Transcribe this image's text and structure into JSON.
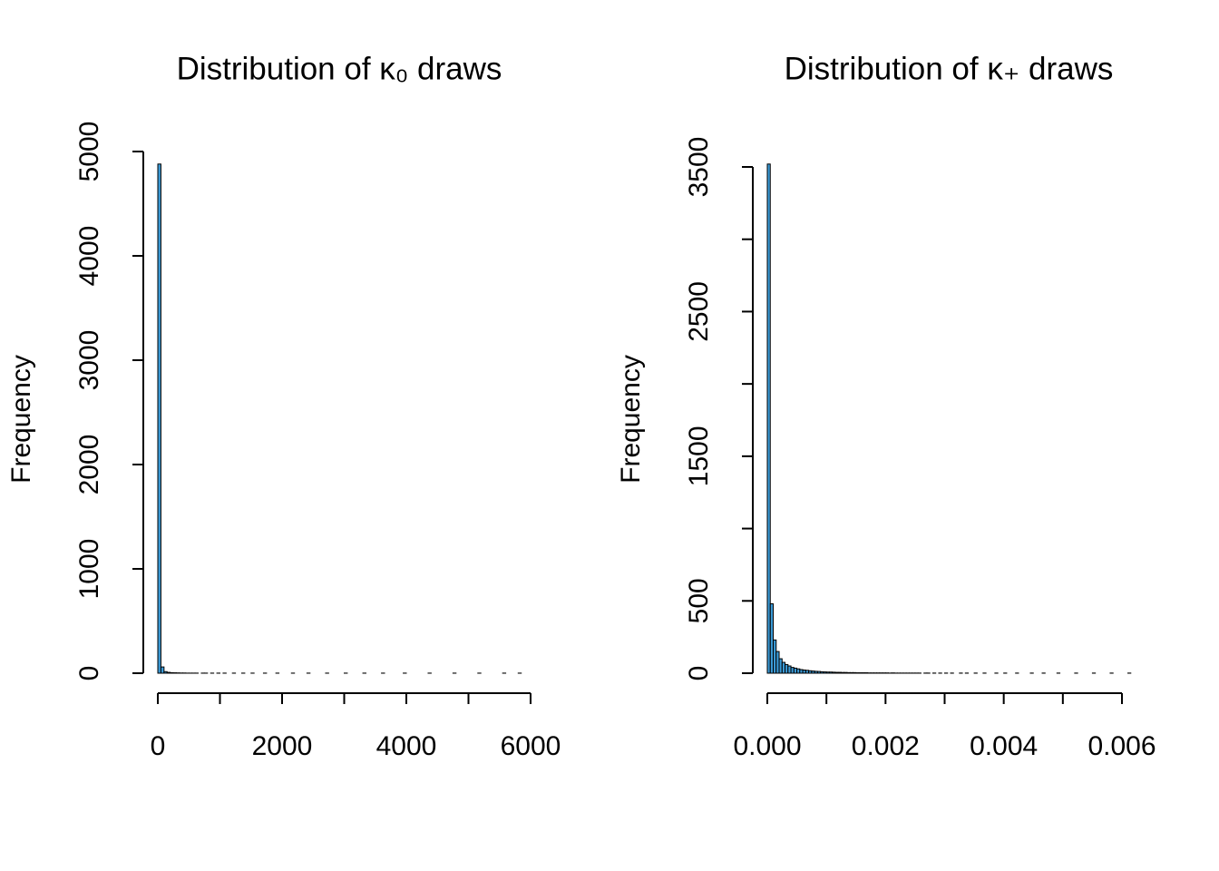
{
  "chart_data": [
    {
      "type": "histogram",
      "title": "Distribution of κ₀ draws",
      "ylabel": "Frequency",
      "color": "#3b9ad6",
      "bins": [
        0,
        50,
        100,
        150,
        200,
        250,
        300,
        350,
        400,
        450,
        500,
        550,
        600,
        650,
        700,
        750,
        800,
        850,
        900,
        950,
        1000,
        1050,
        1100,
        1150,
        1200,
        1250,
        1300,
        1350,
        1400,
        1450,
        1500,
        1550,
        1600,
        1650,
        1700,
        1750,
        1800,
        1850,
        1900,
        1950,
        2000,
        2050,
        2100,
        2150,
        2200,
        2250,
        2300,
        2350,
        2400,
        2450,
        2500,
        2550,
        2600,
        2650,
        2700,
        2750,
        2800,
        2850,
        2900,
        2950,
        3000,
        3050,
        3100,
        3150,
        3200,
        3250,
        3300,
        3350,
        3400,
        3450,
        3500,
        3550,
        3600,
        3650,
        3700,
        3750,
        3800,
        3850,
        3900,
        3950,
        4000,
        4050,
        4100,
        4150,
        4200,
        4250,
        4300,
        4350,
        4400,
        4450,
        4500,
        4550,
        4600,
        4650,
        4700,
        4750,
        4800,
        4850,
        4900,
        4950,
        5000,
        5050,
        5100,
        5150,
        5200,
        5250,
        5300,
        5350,
        5400,
        5450,
        5500,
        5550,
        5600,
        5650,
        5700,
        5750,
        5800,
        5850
      ],
      "values": [
        4880,
        60,
        15,
        8,
        5,
        4,
        3,
        2,
        2,
        1,
        1,
        1,
        1,
        0,
        1,
        1,
        0,
        1,
        0,
        1,
        0,
        1,
        0,
        0,
        1,
        0,
        0,
        1,
        0,
        0,
        1,
        0,
        0,
        0,
        1,
        0,
        0,
        0,
        1,
        0,
        0,
        0,
        0,
        1,
        0,
        0,
        0,
        0,
        1,
        0,
        0,
        0,
        0,
        0,
        1,
        0,
        0,
        0,
        0,
        0,
        1,
        0,
        0,
        0,
        0,
        0,
        1,
        0,
        0,
        0,
        0,
        0,
        1,
        0,
        0,
        0,
        0,
        0,
        0,
        1,
        0,
        0,
        0,
        0,
        0,
        0,
        0,
        1,
        0,
        0,
        0,
        0,
        0,
        0,
        0,
        1,
        0,
        0,
        0,
        0,
        0,
        0,
        0,
        1,
        0,
        0,
        0,
        0,
        0,
        0,
        0,
        1,
        0,
        0,
        0,
        0,
        1
      ],
      "xlim": [
        0,
        6000
      ],
      "xticks": [
        0,
        {
          "value": 1000,
          "label": null
        },
        2000,
        {
          "value": 3000,
          "label": null
        },
        4000,
        {
          "value": 5000,
          "label": null
        },
        6000
      ],
      "ylim": [
        0,
        5000
      ],
      "yticks": [
        0,
        1000,
        2000,
        3000,
        4000,
        5000
      ]
    },
    {
      "type": "histogram",
      "title": "Distribution of κ₊ draws",
      "ylabel": "Frequency",
      "color": "#3b9ad6",
      "bins": [
        0,
        5e-05,
        0.0001,
        0.00015,
        0.0002,
        0.00025,
        0.0003,
        0.00035,
        0.0004,
        0.00045,
        0.0005,
        0.00055,
        0.0006,
        0.00065,
        0.0007,
        0.00075,
        0.0008,
        0.00085,
        0.0009,
        0.00095,
        0.001,
        0.00105,
        0.0011,
        0.00115,
        0.0012,
        0.00125,
        0.0013,
        0.00135,
        0.0014,
        0.00145,
        0.0015,
        0.00155,
        0.0016,
        0.00165,
        0.0017,
        0.00175,
        0.0018,
        0.00185,
        0.0019,
        0.00195,
        0.002,
        0.00205,
        0.0021,
        0.00215,
        0.0022,
        0.00225,
        0.0023,
        0.00235,
        0.0024,
        0.00245,
        0.0025,
        0.00255,
        0.0026,
        0.00265,
        0.0027,
        0.00275,
        0.0028,
        0.00285,
        0.0029,
        0.00295,
        0.003,
        0.00305,
        0.0031,
        0.00315,
        0.0032,
        0.00325,
        0.0033,
        0.00335,
        0.0034,
        0.00345,
        0.0035,
        0.00355,
        0.0036,
        0.00365,
        0.0037,
        0.00375,
        0.0038,
        0.00385,
        0.0039,
        0.00395,
        0.004,
        0.00405,
        0.0041,
        0.00415,
        0.0042,
        0.00425,
        0.0043,
        0.00435,
        0.0044,
        0.00445,
        0.0045,
        0.00455,
        0.0046,
        0.00465,
        0.0047,
        0.00475,
        0.0048,
        0.00485,
        0.0049,
        0.00495,
        0.005,
        0.00505,
        0.0051,
        0.00515,
        0.0052,
        0.00525,
        0.0053,
        0.00535,
        0.0054,
        0.00545,
        0.0055,
        0.00555,
        0.0056,
        0.00565,
        0.0057,
        0.00575,
        0.0058,
        0.00585,
        0.0059,
        0.00595,
        0.006,
        0.00605,
        0.0061,
        0.00615
      ],
      "values": [
        3520,
        480,
        230,
        150,
        100,
        75,
        60,
        50,
        40,
        35,
        30,
        25,
        22,
        20,
        17,
        15,
        13,
        12,
        10,
        9,
        8,
        8,
        7,
        6,
        6,
        5,
        5,
        4,
        4,
        4,
        3,
        3,
        3,
        3,
        2,
        2,
        2,
        2,
        2,
        2,
        2,
        1,
        2,
        1,
        1,
        1,
        1,
        1,
        1,
        1,
        1,
        1,
        0,
        1,
        1,
        0,
        1,
        0,
        1,
        0,
        1,
        0,
        1,
        0,
        0,
        1,
        0,
        1,
        0,
        0,
        1,
        0,
        0,
        1,
        0,
        0,
        0,
        1,
        0,
        0,
        1,
        0,
        0,
        0,
        1,
        0,
        0,
        0,
        0,
        1,
        0,
        0,
        0,
        1,
        0,
        0,
        0,
        0,
        1,
        0,
        0,
        0,
        0,
        0,
        1,
        0,
        0,
        0,
        0,
        0,
        1,
        0,
        0,
        0,
        0,
        0,
        1,
        0,
        0,
        0,
        0,
        0,
        1
      ],
      "xlim": [
        0,
        0.006
      ],
      "xticks": [
        {
          "value": 0,
          "label": "0.000"
        },
        {
          "value": 0.001,
          "label": null
        },
        {
          "value": 0.002,
          "label": "0.002"
        },
        {
          "value": 0.003,
          "label": null
        },
        {
          "value": 0.004,
          "label": "0.004"
        },
        {
          "value": 0.005,
          "label": null
        },
        {
          "value": 0.006,
          "label": "0.006"
        }
      ],
      "ylim": [
        0,
        3500
      ],
      "yticks": [
        0,
        500,
        {
          "value": 1000,
          "label": null
        },
        1500,
        {
          "value": 2000,
          "label": null
        },
        2500,
        {
          "value": 3000,
          "label": null
        },
        3500
      ]
    }
  ]
}
